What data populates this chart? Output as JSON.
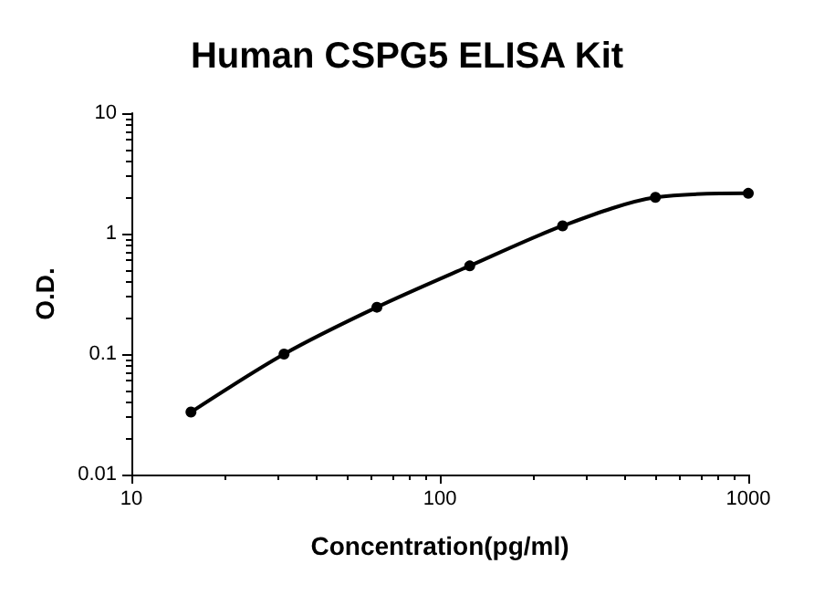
{
  "chart_data": {
    "type": "line",
    "title": "Human CSPG5 ELISA Kit",
    "xlabel": "Concentration(pg/ml)",
    "ylabel": "O.D.",
    "x": [
      15.6,
      31.25,
      62.5,
      125,
      250,
      500,
      1000
    ],
    "series": [
      {
        "color": "#000000",
        "values": [
          0.033,
          0.1,
          0.245,
          0.54,
          1.16,
          2.0,
          2.16
        ]
      }
    ],
    "log": "xy",
    "xlim": [
      10,
      1000
    ],
    "xticks": [
      10,
      100,
      1000
    ],
    "ylim": [
      0.01,
      10
    ],
    "yticks": [
      0.01,
      0.1,
      1,
      10
    ],
    "grid": false,
    "marker": "circle",
    "line_style": "solid"
  }
}
